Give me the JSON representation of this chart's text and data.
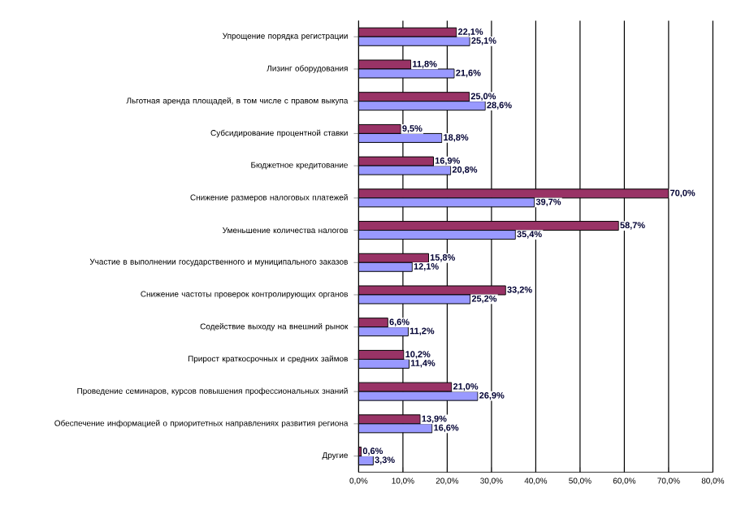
{
  "chart_data": {
    "type": "bar",
    "orientation": "horizontal",
    "categories": [
      "Упрощение порядка регистрации",
      "Лизинг оборудования",
      "Льготная аренда площадей, в том числе с правом выкупа",
      "Субсидирование процентной ставки",
      "Бюджетное кредитование",
      "Снижение размеров налоговых платежей",
      "Уменьшение количества налогов",
      "Участие в выполнении государственного и муниципального заказов",
      "Снижение частоты проверок контролирующих органов",
      "Содействие выходу на внешний рынок",
      "Прирост краткосрочных и средних займов",
      "Проведение семинаров, курсов повышения профессиональных знаний",
      "Обеспечение информацией о приоритетных направлениях развития региона",
      "Другие"
    ],
    "series": [
      {
        "color": "#993366",
        "values": [
          22.1,
          11.8,
          25.0,
          9.5,
          16.9,
          70.0,
          58.7,
          15.8,
          33.2,
          6.6,
          10.2,
          21.0,
          13.9,
          0.6
        ],
        "value_labels": [
          "22,1%",
          "11,8%",
          "25,0%",
          "9,5%",
          "16,9%",
          "70,0%",
          "58,7%",
          "15,8%",
          "33,2%",
          "6,6%",
          "10,2%",
          "21,0%",
          "13,9%",
          "0,6%"
        ]
      },
      {
        "color": "#9999ff",
        "values": [
          25.1,
          21.6,
          28.6,
          18.8,
          20.8,
          39.7,
          35.4,
          12.1,
          25.2,
          11.2,
          11.4,
          26.9,
          16.6,
          3.3
        ],
        "value_labels": [
          "25,1%",
          "21,6%",
          "28,6%",
          "18,8%",
          "20,8%",
          "39,7%",
          "35,4%",
          "12,1%",
          "25,2%",
          "11,2%",
          "11,4%",
          "26,9%",
          "16,6%",
          "3,3%"
        ]
      }
    ],
    "xlim": [
      0,
      80
    ],
    "xticks": [
      {
        "value": 0,
        "label": "0,0%"
      },
      {
        "value": 10,
        "label": "10,0%"
      },
      {
        "value": 20,
        "label": "20,0%"
      },
      {
        "value": 30,
        "label": "30,0%"
      },
      {
        "value": 40,
        "label": "40,0%"
      },
      {
        "value": 50,
        "label": "50,0%"
      },
      {
        "value": 60,
        "label": "60,0%"
      },
      {
        "value": 70,
        "label": "70,0%"
      },
      {
        "value": 80,
        "label": "80,0%"
      }
    ],
    "grid": "x"
  }
}
